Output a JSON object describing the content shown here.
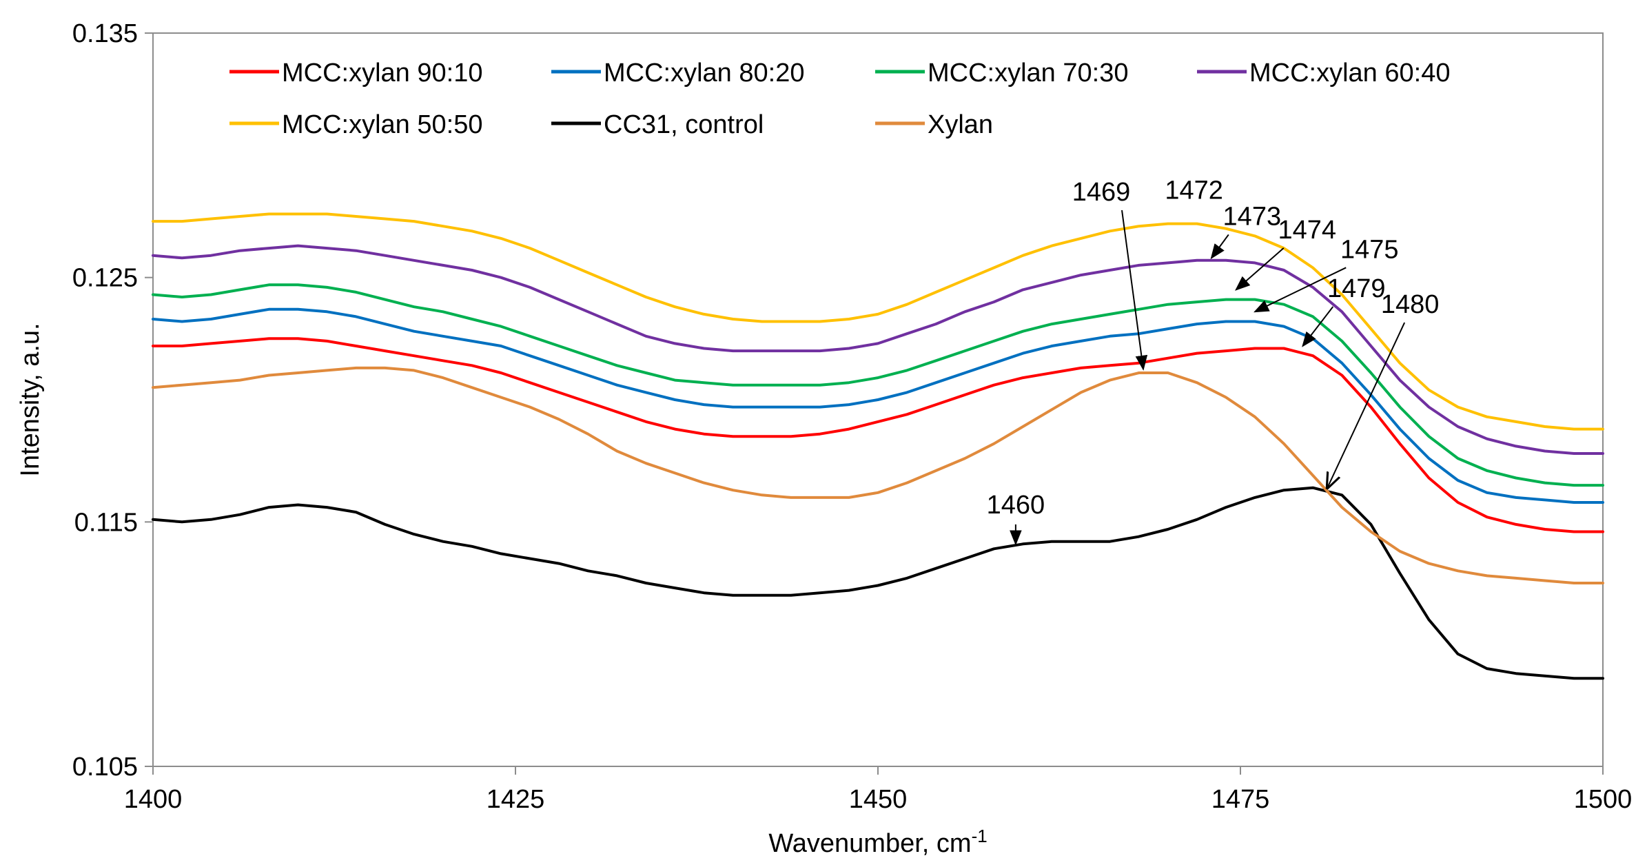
{
  "chart_data": {
    "type": "line",
    "title": "",
    "xlabel": "Wavenumber, cm",
    "xlabel_superscript": "-1",
    "ylabel": "Intensity, a.u.",
    "xlim": [
      1400,
      1500
    ],
    "ylim": [
      0.105,
      0.135
    ],
    "xticks": [
      1400,
      1425,
      1450,
      1475,
      1500
    ],
    "xtick_labels": [
      "1400",
      "1425",
      "1450",
      "1475",
      "1500"
    ],
    "yticks": [
      0.105,
      0.115,
      0.125,
      0.135
    ],
    "ytick_labels": [
      "0.105",
      "0.115",
      "0.125",
      "0.135"
    ],
    "grid": false,
    "legend_position": "top",
    "x": [
      1400,
      1402,
      1404,
      1406,
      1408,
      1410,
      1412,
      1414,
      1416,
      1418,
      1420,
      1422,
      1424,
      1426,
      1428,
      1430,
      1432,
      1434,
      1436,
      1438,
      1440,
      1442,
      1444,
      1446,
      1448,
      1450,
      1452,
      1454,
      1456,
      1458,
      1460,
      1462,
      1464,
      1466,
      1468,
      1470,
      1472,
      1474,
      1476,
      1478,
      1480,
      1482,
      1484,
      1486,
      1488,
      1490,
      1492,
      1494,
      1496,
      1498,
      1500
    ],
    "series": [
      {
        "name": "MCC:xylan 90:10",
        "color": "#ff0000",
        "values": [
          0.1222,
          0.1222,
          0.1223,
          0.1224,
          0.1225,
          0.1225,
          0.1224,
          0.1222,
          0.122,
          0.1218,
          0.1216,
          0.1214,
          0.1211,
          0.1207,
          0.1203,
          0.1199,
          0.1195,
          0.1191,
          0.1188,
          0.1186,
          0.1185,
          0.1185,
          0.1185,
          0.1186,
          0.1188,
          0.1191,
          0.1194,
          0.1198,
          0.1202,
          0.1206,
          0.1209,
          0.1211,
          0.1213,
          0.1214,
          0.1215,
          0.1217,
          0.1219,
          0.122,
          0.1221,
          0.1221,
          0.1218,
          0.121,
          0.1197,
          0.1182,
          0.1168,
          0.1158,
          0.1152,
          0.1149,
          0.1147,
          0.1146,
          0.1146
        ]
      },
      {
        "name": "MCC:xylan 80:20",
        "color": "#0070c0",
        "values": [
          0.1233,
          0.1232,
          0.1233,
          0.1235,
          0.1237,
          0.1237,
          0.1236,
          0.1234,
          0.1231,
          0.1228,
          0.1226,
          0.1224,
          0.1222,
          0.1218,
          0.1214,
          0.121,
          0.1206,
          0.1203,
          0.12,
          0.1198,
          0.1197,
          0.1197,
          0.1197,
          0.1197,
          0.1198,
          0.12,
          0.1203,
          0.1207,
          0.1211,
          0.1215,
          0.1219,
          0.1222,
          0.1224,
          0.1226,
          0.1227,
          0.1229,
          0.1231,
          0.1232,
          0.1232,
          0.123,
          0.1225,
          0.1215,
          0.1202,
          0.1188,
          0.1176,
          0.1167,
          0.1162,
          0.116,
          0.1159,
          0.1158,
          0.1158
        ]
      },
      {
        "name": "MCC:xylan 70:30",
        "color": "#00b050",
        "values": [
          0.1243,
          0.1242,
          0.1243,
          0.1245,
          0.1247,
          0.1247,
          0.1246,
          0.1244,
          0.1241,
          0.1238,
          0.1236,
          0.1233,
          0.123,
          0.1226,
          0.1222,
          0.1218,
          0.1214,
          0.1211,
          0.1208,
          0.1207,
          0.1206,
          0.1206,
          0.1206,
          0.1206,
          0.1207,
          0.1209,
          0.1212,
          0.1216,
          0.122,
          0.1224,
          0.1228,
          0.1231,
          0.1233,
          0.1235,
          0.1237,
          0.1239,
          0.124,
          0.1241,
          0.1241,
          0.1239,
          0.1234,
          0.1224,
          0.1211,
          0.1197,
          0.1185,
          0.1176,
          0.1171,
          0.1168,
          0.1166,
          0.1165,
          0.1165
        ]
      },
      {
        "name": "MCC:xylan 60:40",
        "color": "#7030a0",
        "values": [
          0.1259,
          0.1258,
          0.1259,
          0.1261,
          0.1262,
          0.1263,
          0.1262,
          0.1261,
          0.1259,
          0.1257,
          0.1255,
          0.1253,
          0.125,
          0.1246,
          0.1241,
          0.1236,
          0.1231,
          0.1226,
          0.1223,
          0.1221,
          0.122,
          0.122,
          0.122,
          0.122,
          0.1221,
          0.1223,
          0.1227,
          0.1231,
          0.1236,
          0.124,
          0.1245,
          0.1248,
          0.1251,
          0.1253,
          0.1255,
          0.1256,
          0.1257,
          0.1257,
          0.1256,
          0.1253,
          0.1246,
          0.1236,
          0.1222,
          0.1208,
          0.1197,
          0.1189,
          0.1184,
          0.1181,
          0.1179,
          0.1178,
          0.1178
        ]
      },
      {
        "name": "MCC:xylan 50:50",
        "color": "#ffc000",
        "values": [
          0.1273,
          0.1273,
          0.1274,
          0.1275,
          0.1276,
          0.1276,
          0.1276,
          0.1275,
          0.1274,
          0.1273,
          0.1271,
          0.1269,
          0.1266,
          0.1262,
          0.1257,
          0.1252,
          0.1247,
          0.1242,
          0.1238,
          0.1235,
          0.1233,
          0.1232,
          0.1232,
          0.1232,
          0.1233,
          0.1235,
          0.1239,
          0.1244,
          0.1249,
          0.1254,
          0.1259,
          0.1263,
          0.1266,
          0.1269,
          0.1271,
          0.1272,
          0.1272,
          0.127,
          0.1267,
          0.1262,
          0.1254,
          0.1243,
          0.1229,
          0.1215,
          0.1204,
          0.1197,
          0.1193,
          0.1191,
          0.1189,
          0.1188,
          0.1188
        ]
      },
      {
        "name": "CC31, control",
        "color": "#000000",
        "values": [
          0.1151,
          0.115,
          0.1151,
          0.1153,
          0.1156,
          0.1157,
          0.1156,
          0.1154,
          0.1149,
          0.1145,
          0.1142,
          0.114,
          0.1137,
          0.1135,
          0.1133,
          0.113,
          0.1128,
          0.1125,
          0.1123,
          0.1121,
          0.112,
          0.112,
          0.112,
          0.1121,
          0.1122,
          0.1124,
          0.1127,
          0.1131,
          0.1135,
          0.1139,
          0.1141,
          0.1142,
          0.1142,
          0.1142,
          0.1144,
          0.1147,
          0.1151,
          0.1156,
          0.116,
          0.1163,
          0.1164,
          0.1161,
          0.1149,
          0.1129,
          0.111,
          0.1096,
          0.109,
          0.1088,
          0.1087,
          0.1086,
          0.1086
        ]
      },
      {
        "name": "Xylan",
        "color": "#e08a3c",
        "values": [
          0.1205,
          0.1206,
          0.1207,
          0.1208,
          0.121,
          0.1211,
          0.1212,
          0.1213,
          0.1213,
          0.1212,
          0.1209,
          0.1205,
          0.1201,
          0.1197,
          0.1192,
          0.1186,
          0.1179,
          0.1174,
          0.117,
          0.1166,
          0.1163,
          0.1161,
          0.116,
          0.116,
          0.116,
          0.1162,
          0.1166,
          0.1171,
          0.1176,
          0.1182,
          0.1189,
          0.1196,
          0.1203,
          0.1208,
          0.1211,
          0.1211,
          0.1207,
          0.1201,
          0.1193,
          0.1182,
          0.1169,
          0.1156,
          0.1146,
          0.1138,
          0.1133,
          0.113,
          0.1128,
          0.1127,
          0.1126,
          0.1125,
          0.1125
        ]
      }
    ],
    "annotations": [
      {
        "label": "1469",
        "label_x": 1465.4,
        "label_y": 0.12815,
        "to_x": 1468.3,
        "to_y": 0.12125,
        "head": "filled"
      },
      {
        "label": "1472",
        "label_x": 1471.8,
        "label_y": 0.12822,
        "to_x": null,
        "to_y": null,
        "head": "none"
      },
      {
        "label": "1473",
        "label_x": 1475.8,
        "label_y": 0.12715,
        "to_x": 1473.0,
        "to_y": 0.1258,
        "head": "filled"
      },
      {
        "label": "1474",
        "label_x": 1479.6,
        "label_y": 0.1266,
        "to_x": 1474.7,
        "to_y": 0.1245,
        "head": "filled"
      },
      {
        "label": "1475",
        "label_x": 1483.9,
        "label_y": 0.1258,
        "to_x": 1476.0,
        "to_y": 0.1236,
        "head": "filled"
      },
      {
        "label": "1479",
        "label_x": 1483.0,
        "label_y": 0.1242,
        "to_x": 1479.3,
        "to_y": 0.1222,
        "head": "filled"
      },
      {
        "label": "1480",
        "label_x": 1486.7,
        "label_y": 0.12355,
        "to_x": 1481.0,
        "to_y": 0.1164,
        "head": "open"
      },
      {
        "label": "1460",
        "label_x": 1459.5,
        "label_y": 0.11535,
        "to_x": 1459.5,
        "to_y": 0.1141,
        "head": "filled"
      }
    ]
  }
}
